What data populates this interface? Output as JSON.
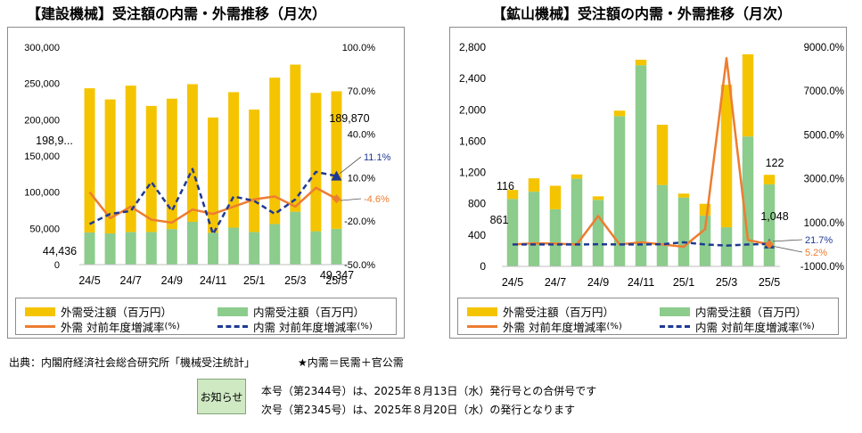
{
  "chart_data": [
    {
      "type": "bar",
      "stacked": true,
      "title": "【建設機械】受注額の内需・外需推移（月次）",
      "categories": [
        "24/5",
        "24/6",
        "24/7",
        "24/8",
        "24/9",
        "24/10",
        "24/11",
        "24/12",
        "25/1",
        "25/2",
        "25/3",
        "25/4",
        "25/5"
      ],
      "x_tick_labels": [
        "24/5",
        "24/7",
        "24/9",
        "24/11",
        "25/1",
        "25/3",
        "25/5"
      ],
      "series": [
        {
          "name": "内需受注額（百万円）",
          "kind": "bar",
          "axis": "left",
          "color": "#8ccc8c",
          "values": [
            44436,
            43000,
            45000,
            45000,
            49000,
            59000,
            44000,
            51000,
            45000,
            56000,
            73000,
            46000,
            49347
          ]
        },
        {
          "name": "外需受注額（百万円）",
          "kind": "bar",
          "axis": "left",
          "color": "#f5c400",
          "values": [
            198900,
            185000,
            202000,
            174000,
            180000,
            190000,
            159000,
            187000,
            169000,
            202000,
            203000,
            191000,
            189870
          ]
        },
        {
          "name": "外需 対前年度増減率",
          "kind": "line",
          "axis": "right",
          "color": "#ed7d31",
          "style": "solid",
          "values": [
            0.0,
            -18.0,
            -10.0,
            -19.0,
            -21.0,
            -12.0,
            -15.0,
            -10.0,
            -5.0,
            -3.0,
            -10.0,
            3.0,
            -4.6
          ]
        },
        {
          "name": "内需 対前年度増減率",
          "kind": "line",
          "axis": "right",
          "color": "#1f3a93",
          "style": "dashed",
          "values": [
            -22.0,
            -15.0,
            -13.0,
            7.0,
            -13.0,
            16.0,
            -29.0,
            -3.0,
            -6.0,
            -15.0,
            -5.0,
            14.0,
            11.1
          ]
        }
      ],
      "left_axis": {
        "min": 0,
        "max": 300000,
        "ticks": [
          "300,000",
          "250,000",
          "200,000",
          "150,000",
          "100,000",
          "50,000",
          "0"
        ]
      },
      "right_axis": {
        "min": -50,
        "max": 100,
        "ticks": [
          "100.0%",
          "70.0%",
          "40.0%",
          "10.0%",
          "-20.0%",
          "-50.0%"
        ]
      },
      "annotations": {
        "first_outer": "198,9...",
        "first_inner": "44,436",
        "last_outer": "189,870",
        "last_inner": "49,347",
        "last_inner_rate": "11.1%",
        "last_outer_rate": "-4.6%"
      }
    },
    {
      "type": "bar",
      "stacked": true,
      "title": "【鉱山機械】受注額の内需・外需推移（月次）",
      "categories": [
        "24/5",
        "24/6",
        "24/7",
        "24/8",
        "24/9",
        "24/10",
        "24/11",
        "24/12",
        "25/1",
        "25/2",
        "25/3",
        "25/4",
        "25/5"
      ],
      "x_tick_labels": [
        "24/5",
        "24/7",
        "24/9",
        "24/11",
        "25/1",
        "25/3",
        "25/5"
      ],
      "series": [
        {
          "name": "内需受注額（百万円）",
          "kind": "bar",
          "axis": "left",
          "color": "#8ccc8c",
          "values": [
            861,
            955,
            730,
            1120,
            850,
            1920,
            2570,
            1040,
            880,
            650,
            500,
            1660,
            1048
          ]
        },
        {
          "name": "外需受注額（百万円）",
          "kind": "bar",
          "axis": "left",
          "color": "#f5c400",
          "values": [
            116,
            170,
            300,
            55,
            45,
            70,
            70,
            770,
            50,
            150,
            1820,
            1050,
            122
          ]
        },
        {
          "name": "外需 対前年度増減率",
          "kind": "line",
          "axis": "right",
          "color": "#ed7d31",
          "style": "solid",
          "values": [
            0,
            50,
            40,
            0,
            1300,
            0,
            100,
            0,
            -100,
            700,
            8500,
            200,
            5.2
          ]
        },
        {
          "name": "内需 対前年度増減率",
          "kind": "line",
          "axis": "right",
          "color": "#1f3a93",
          "style": "dashed",
          "values": [
            0,
            0,
            0,
            0,
            10,
            0,
            0,
            10,
            100,
            0,
            -50,
            0,
            21.7
          ]
        }
      ],
      "left_axis": {
        "min": 0,
        "max": 2800,
        "ticks": [
          "2,800",
          "2,400",
          "2,000",
          "1,600",
          "1,200",
          "800",
          "400",
          "0"
        ]
      },
      "right_axis": {
        "min": -1000,
        "max": 9000,
        "ticks": [
          "9000.0%",
          "7000.0%",
          "5000.0%",
          "3000.0%",
          "1000.0%",
          "-1000.0%"
        ]
      },
      "annotations": {
        "first_outer": "116",
        "first_inner": "861",
        "last_outer": "122",
        "last_inner": "1,048",
        "last_inner_rate": "21.7%",
        "last_outer_rate": "5.2%"
      }
    }
  ],
  "legend": {
    "outer_bar": "外需受注額（百万円）",
    "inner_bar": "内需受注額（百万円）",
    "outer_rate": "外需 対前年度増減率",
    "inner_rate": "内需 対前年度増減率",
    "unit": "(%)"
  },
  "colors": {
    "outer": "#f5c400",
    "inner": "#8ccc8c",
    "outer_rate": "#ed7d31",
    "inner_rate": "#1f3a93",
    "notice_bg": "#cfe9c3"
  },
  "source": {
    "text": "出典：内閣府経済社会総合研究所「機械受注統計」",
    "note": "★内需＝民需＋官公需"
  },
  "notice": {
    "button": "お知らせ",
    "line1": "本号（第2344号）は、2025年８月13日（水）発行号との合併号です",
    "line2": "次号（第2345号）は、2025年８月20日（水）の発行となります"
  }
}
